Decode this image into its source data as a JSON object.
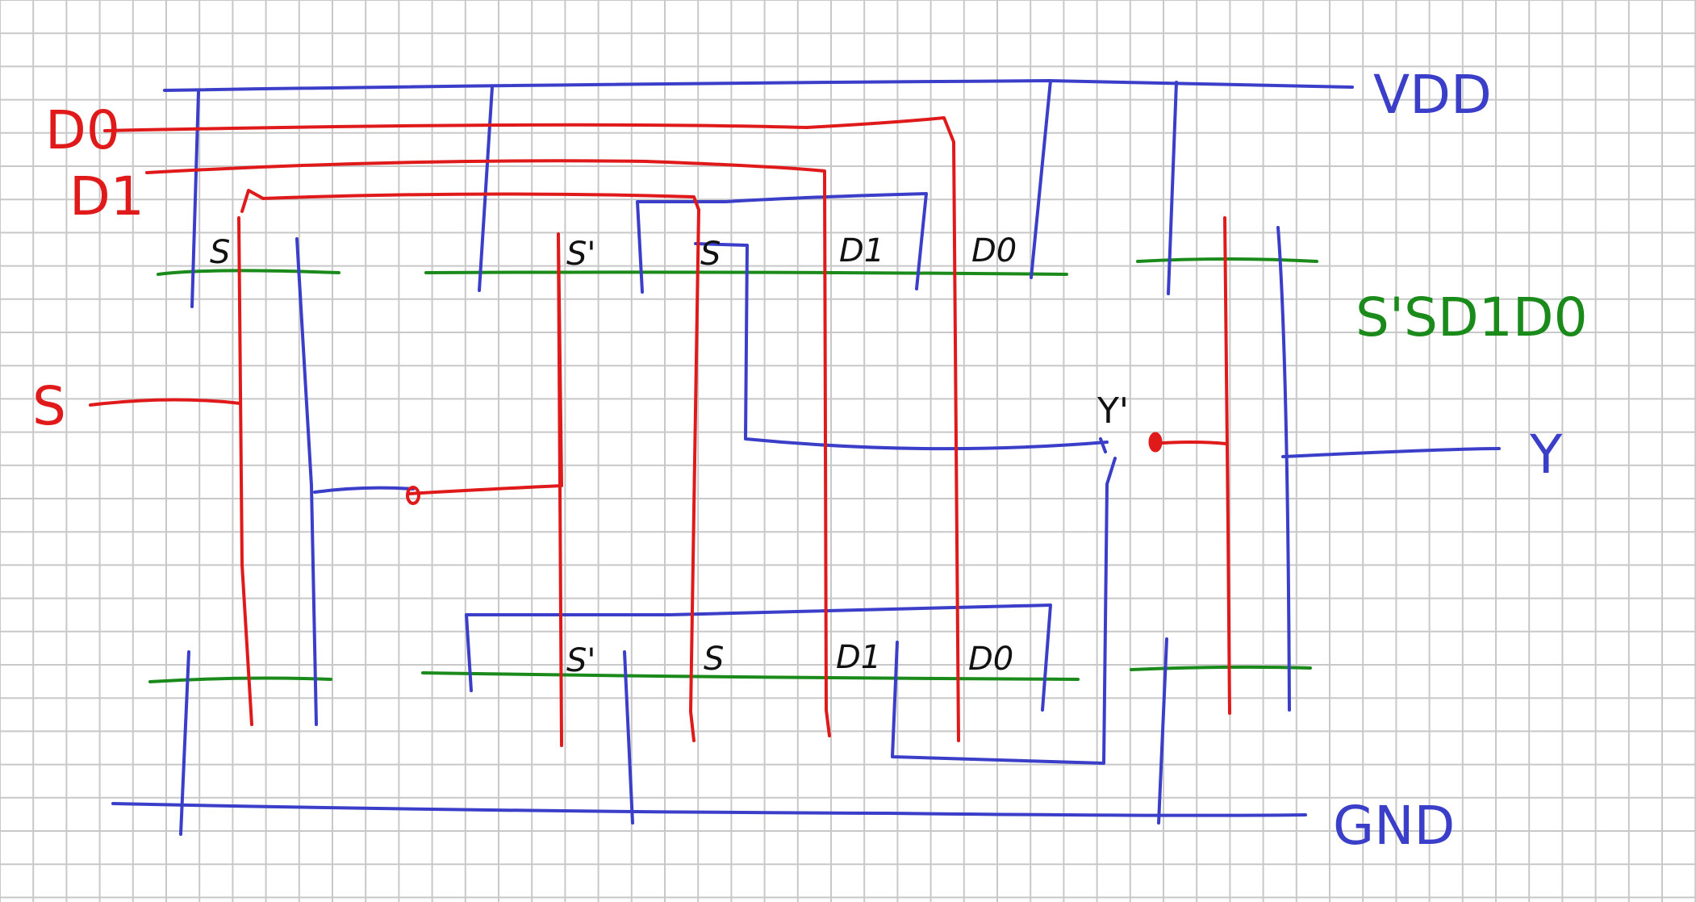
{
  "colors": {
    "grid": "#c8c8c8",
    "blue": "#3a3ec8",
    "red": "#e01a1a",
    "green": "#1a8a1a",
    "black": "#111111"
  },
  "labels": {
    "vdd": "VDD",
    "gnd": "GND",
    "y": "Y",
    "y_prime": "Y'",
    "in_d0": "D0",
    "in_d1": "D1",
    "in_s": "S",
    "diffusion_order": "S'SD1D0"
  },
  "gate_labels": {
    "top": [
      "S",
      "S'",
      "S",
      "D1",
      "D0"
    ],
    "bottom": [
      "S'",
      "S",
      "D1",
      "D0"
    ]
  }
}
